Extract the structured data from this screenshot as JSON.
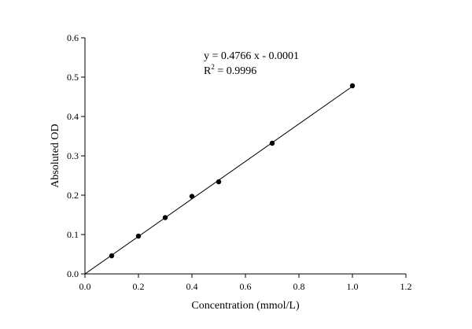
{
  "chart_data": {
    "type": "scatter",
    "xlabel": "Concentration (mmol/L)",
    "ylabel": "Absoluted OD",
    "xlim": [
      0,
      1.2
    ],
    "ylim": [
      0,
      0.6
    ],
    "xticks": [
      0.0,
      0.2,
      0.4,
      0.6,
      0.8,
      1.0,
      1.2
    ],
    "yticks": [
      0.0,
      0.1,
      0.2,
      0.3,
      0.4,
      0.5,
      0.6
    ],
    "xtick_labels": [
      "0.0",
      "0.2",
      "0.4",
      "0.6",
      "0.8",
      "1.0",
      "1.2"
    ],
    "ytick_labels": [
      "0.0",
      "0.1",
      "0.2",
      "0.3",
      "0.4",
      "0.5",
      "0.6"
    ],
    "grid": false,
    "legend": "none",
    "points": [
      {
        "x": 0.1,
        "y": 0.046
      },
      {
        "x": 0.2,
        "y": 0.096
      },
      {
        "x": 0.3,
        "y": 0.143
      },
      {
        "x": 0.4,
        "y": 0.197
      },
      {
        "x": 0.5,
        "y": 0.234
      },
      {
        "x": 0.7,
        "y": 0.332
      },
      {
        "x": 1.0,
        "y": 0.478
      }
    ],
    "fit_line": {
      "slope": 0.4766,
      "intercept": -0.0001,
      "x_range": [
        0,
        1.0
      ]
    },
    "annotations": {
      "equation": "y = 0.4766 x - 0.0001",
      "r2_prefix": "R",
      "r2_exponent": "2",
      "r2_value": " = 0.9996"
    }
  }
}
